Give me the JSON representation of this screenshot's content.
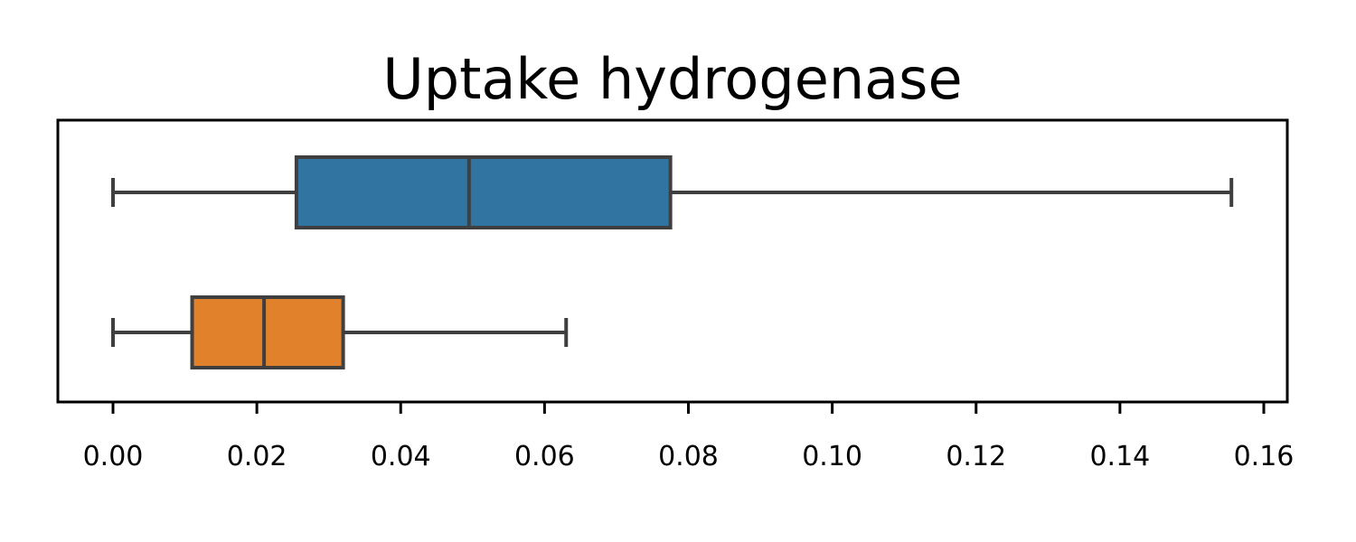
{
  "chart_data": {
    "type": "box",
    "orientation": "horizontal",
    "title": "Uptake hydrogenase",
    "xlabel": "",
    "ylabel": "",
    "xlim": [
      -0.0077,
      0.163
    ],
    "x_ticks": [
      "0.00",
      "0.02",
      "0.04",
      "0.06",
      "0.08",
      "0.10",
      "0.12",
      "0.14",
      "0.16"
    ],
    "x_tick_values": [
      0,
      0.02,
      0.04,
      0.06,
      0.08,
      0.1,
      0.12,
      0.14,
      0.16
    ],
    "grid": false,
    "legend": false,
    "boxes": [
      {
        "whisker_low": 0.0,
        "q1": 0.0255,
        "median": 0.0495,
        "q3": 0.0775,
        "whisker_high": 0.1555,
        "color": "#3274a1"
      },
      {
        "whisker_low": 0.0,
        "q1": 0.011,
        "median": 0.021,
        "q3": 0.032,
        "whisker_high": 0.063,
        "color": "#e1812c"
      }
    ],
    "line_color": "#3f3f3f"
  }
}
